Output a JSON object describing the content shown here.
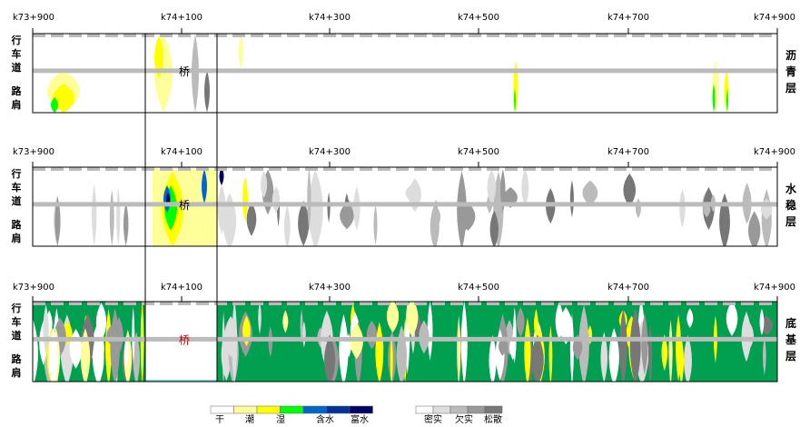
{
  "stations": [
    "k73+900",
    "k74+100",
    "k74+300",
    "k74+500",
    "k74+700",
    "k74+900"
  ],
  "lane_labels": {
    "driving_lane": [
      "行",
      "车",
      "道"
    ],
    "shoulder": [
      "路",
      "肩"
    ]
  },
  "bridge_label": "桥",
  "layers": [
    {
      "name": [
        "沥",
        "青",
        "层"
      ]
    },
    {
      "name": [
        "水",
        "稳",
        "层"
      ]
    },
    {
      "name": [
        "底",
        "基",
        "层"
      ]
    }
  ],
  "moisture_legend": {
    "labels": [
      "干",
      "潮",
      "湿",
      "含水",
      "富水"
    ],
    "colors": [
      "#ffffff",
      "#ffff99",
      "#ffff00",
      "#00ff00",
      "#0066cc",
      "#003399",
      "#000066"
    ]
  },
  "density_legend": {
    "labels": [
      "密实",
      "欠实",
      "松散"
    ],
    "colors": [
      "#ffffff",
      "#dddddd",
      "#bbbbbb",
      "#999999",
      "#777777"
    ]
  },
  "colors": {
    "lane_divider": "#bbbbbb",
    "base_green": "#00a050",
    "bridge_border": "#66cccc"
  }
}
